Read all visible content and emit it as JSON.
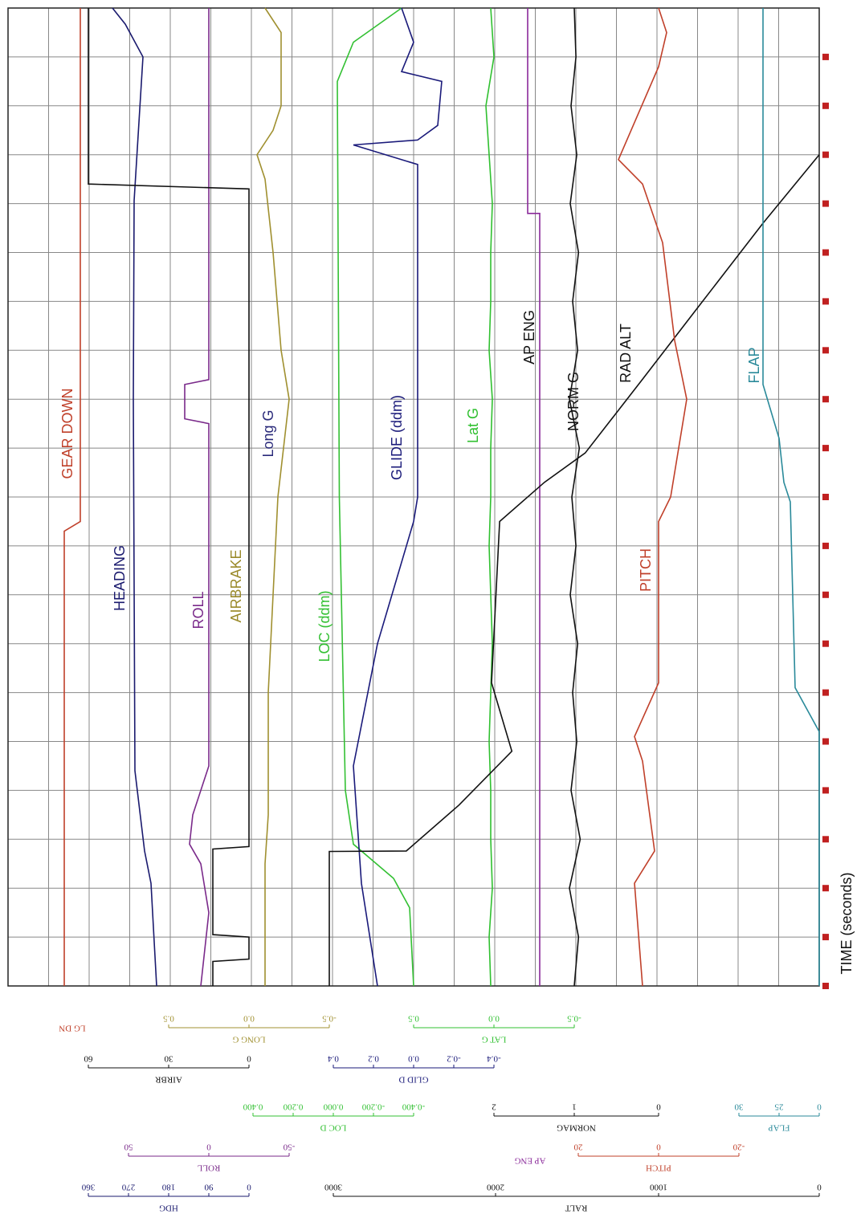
{
  "chart_data": {
    "type": "line",
    "x_label": "TIME (seconds)",
    "traces": [
      {
        "name": "GEAR DOWN",
        "scale": "LG DN",
        "color": "#c0402a",
        "x": [
          0,
          9.3,
          9.5,
          20
        ],
        "values": [
          0,
          0,
          1,
          1
        ]
      },
      {
        "name": "HEADING",
        "scale": "HDG",
        "color": "#1a1a6e",
        "ticks": [
          0,
          90,
          180,
          270,
          360
        ],
        "x": [
          0,
          2.1,
          2.76,
          4.4,
          12,
          16.06,
          19,
          19.67,
          20
        ],
        "values": [
          207,
          219.6,
          234,
          255.6,
          259.2,
          257.4,
          237.6,
          277.2,
          306
        ]
      },
      {
        "name": "ROLL",
        "scale": "ROLL",
        "color": "#7a2a8a",
        "ticks": [
          -50,
          0,
          50
        ],
        "x": [
          0,
          1.5,
          2.5,
          2.9,
          3.5,
          4.5,
          11.5,
          11.6,
          12.3,
          12.4,
          20
        ],
        "values": [
          5,
          0,
          5,
          12,
          10,
          0,
          0,
          15,
          15,
          0,
          0
        ]
      },
      {
        "name": "AIRBRAKE",
        "scale": "AIRBR",
        "color": "#111111",
        "label_color": "#9a8a2a",
        "ticks": [
          0,
          30,
          60
        ],
        "x": [
          0,
          0.5,
          0.55,
          1.0,
          1.05,
          2.8,
          2.85,
          16.3,
          16.4,
          20
        ],
        "values": [
          13.5,
          13.5,
          0,
          0,
          13.5,
          13.5,
          0,
          0,
          60,
          60
        ]
      },
      {
        "name": "Long G",
        "scale": "LONG G",
        "color": "#a09030",
        "label_color": "#2a2a7a",
        "ticks": [
          -0.5,
          {
            "value": 0,
            "label": "0.0"
          },
          0.5
        ],
        "x": [
          0,
          2.5,
          3.5,
          6,
          8,
          10,
          12,
          13,
          15,
          16.5,
          17,
          17.5,
          18,
          19,
          19.5,
          20
        ],
        "values": [
          -0.1,
          -0.1,
          -0.12,
          -0.12,
          -0.15,
          -0.18,
          -0.25,
          -0.2,
          -0.15,
          -0.1,
          -0.05,
          -0.15,
          -0.2,
          -0.2,
          -0.2,
          -0.1
        ]
      },
      {
        "name": "LOC (ddm)",
        "scale": "LOC D",
        "color": "#33c033",
        "ticks": [
          {
            "value": -0.4,
            "label": "-0.400"
          },
          {
            "value": -0.2,
            "label": "-0.200"
          },
          {
            "value": 0,
            "label": "0.000"
          },
          {
            "value": 0.2,
            "label": "0.200"
          },
          {
            "value": 0.4,
            "label": "0.400"
          }
        ],
        "x": [
          0,
          1.6,
          2.2,
          2.9,
          4,
          10,
          18.5,
          19.3,
          20
        ],
        "values": [
          -0.4,
          -0.38,
          -0.3,
          -0.1,
          -0.06,
          -0.03,
          -0.02,
          -0.1,
          -0.34
        ]
      },
      {
        "name": "GLIDE (ddm)",
        "scale": "GLID D",
        "color": "#1a1a7a",
        "ticks": [
          -0.4,
          -0.2,
          {
            "value": 0,
            "label": "0.0"
          },
          0.2,
          0.4
        ],
        "x": [
          0,
          2.1,
          4.5,
          7,
          9.5,
          10,
          16.8,
          17.2,
          17.3,
          17.6,
          18.5,
          18.7,
          19.3,
          20
        ],
        "values": [
          0.18,
          0.26,
          0.3,
          0.18,
          0,
          -0.02,
          -0.02,
          0.3,
          -0.02,
          -0.12,
          -0.14,
          0.06,
          0,
          0.06
        ]
      },
      {
        "name": "Lat G",
        "scale": "LAT G",
        "color": "#30c030",
        "ticks": [
          -0.5,
          {
            "value": 0,
            "label": "0.0"
          },
          0.5
        ],
        "x": [
          0,
          1,
          2,
          3,
          4,
          5,
          6,
          7,
          8,
          9,
          10,
          11,
          12,
          13,
          14,
          15,
          16,
          17,
          18,
          19,
          20
        ],
        "values": [
          0.02,
          0.03,
          0.01,
          0.02,
          0.02,
          0.03,
          0.02,
          0.01,
          0.02,
          0.03,
          0.02,
          0.02,
          0.01,
          0.03,
          0.02,
          0.02,
          0.01,
          0.03,
          0.05,
          0.0,
          0.02
        ]
      },
      {
        "name": "AP ENG",
        "scale": "AP ENG",
        "color": "#8a2a9a",
        "label_color": "#111111",
        "x": [
          0,
          15.8,
          15.8,
          20
        ],
        "values": [
          0,
          0,
          1,
          1
        ]
      },
      {
        "name": "NORM G",
        "scale": "NORMAG",
        "color": "#111111",
        "ticks": [
          0,
          1,
          2
        ],
        "x": [
          0,
          1,
          2,
          3,
          4,
          5,
          6,
          7,
          8,
          9,
          10,
          11,
          12,
          13,
          14,
          15,
          16,
          17,
          18,
          19,
          20
        ],
        "values": [
          1.0,
          0.95,
          1.06,
          0.93,
          1.04,
          0.97,
          1.02,
          0.96,
          1.05,
          0.98,
          1.03,
          0.94,
          1.06,
          0.96,
          1.02,
          0.95,
          1.05,
          0.97,
          1.04,
          0.98,
          1.0
        ]
      },
      {
        "name": "RAD ALT",
        "scale": "RALT",
        "color": "#111111",
        "ticks": [
          0,
          1000,
          2000,
          3000
        ],
        "x": [
          0,
          2.75,
          2.76,
          3.7,
          4.8,
          6.2,
          9.5,
          10.3,
          10.9,
          12.4,
          13.9,
          15.6,
          17.0
        ],
        "values": [
          3025,
          3025,
          2550,
          2225,
          1900,
          2025,
          1975,
          1700,
          1450,
          1100,
          750,
          350,
          0
        ]
      },
      {
        "name": "PITCH",
        "scale": "PITCH",
        "color": "#c0402a",
        "ticks": [
          -20,
          0,
          20
        ],
        "x": [
          0,
          2.1,
          2.76,
          4.6,
          5.1,
          6.2,
          9.5,
          10,
          12,
          13.2,
          15.2,
          16.4,
          16.9,
          18.8,
          19.5,
          20
        ],
        "values": [
          4,
          6,
          1,
          4,
          6,
          0,
          0,
          -3,
          -7,
          -4,
          -1,
          4,
          10,
          0,
          -2,
          0
        ]
      },
      {
        "name": "FLAP",
        "scale": "FLAP",
        "color": "#2a8a9a",
        "ticks": [
          0,
          25,
          30
        ],
        "x": [
          0,
          5.2,
          6.1,
          9.9,
          10.3,
          11.2,
          12.3,
          20
        ],
        "values": [
          0,
          0,
          15,
          18,
          22,
          25,
          27,
          27
        ]
      }
    ]
  }
}
